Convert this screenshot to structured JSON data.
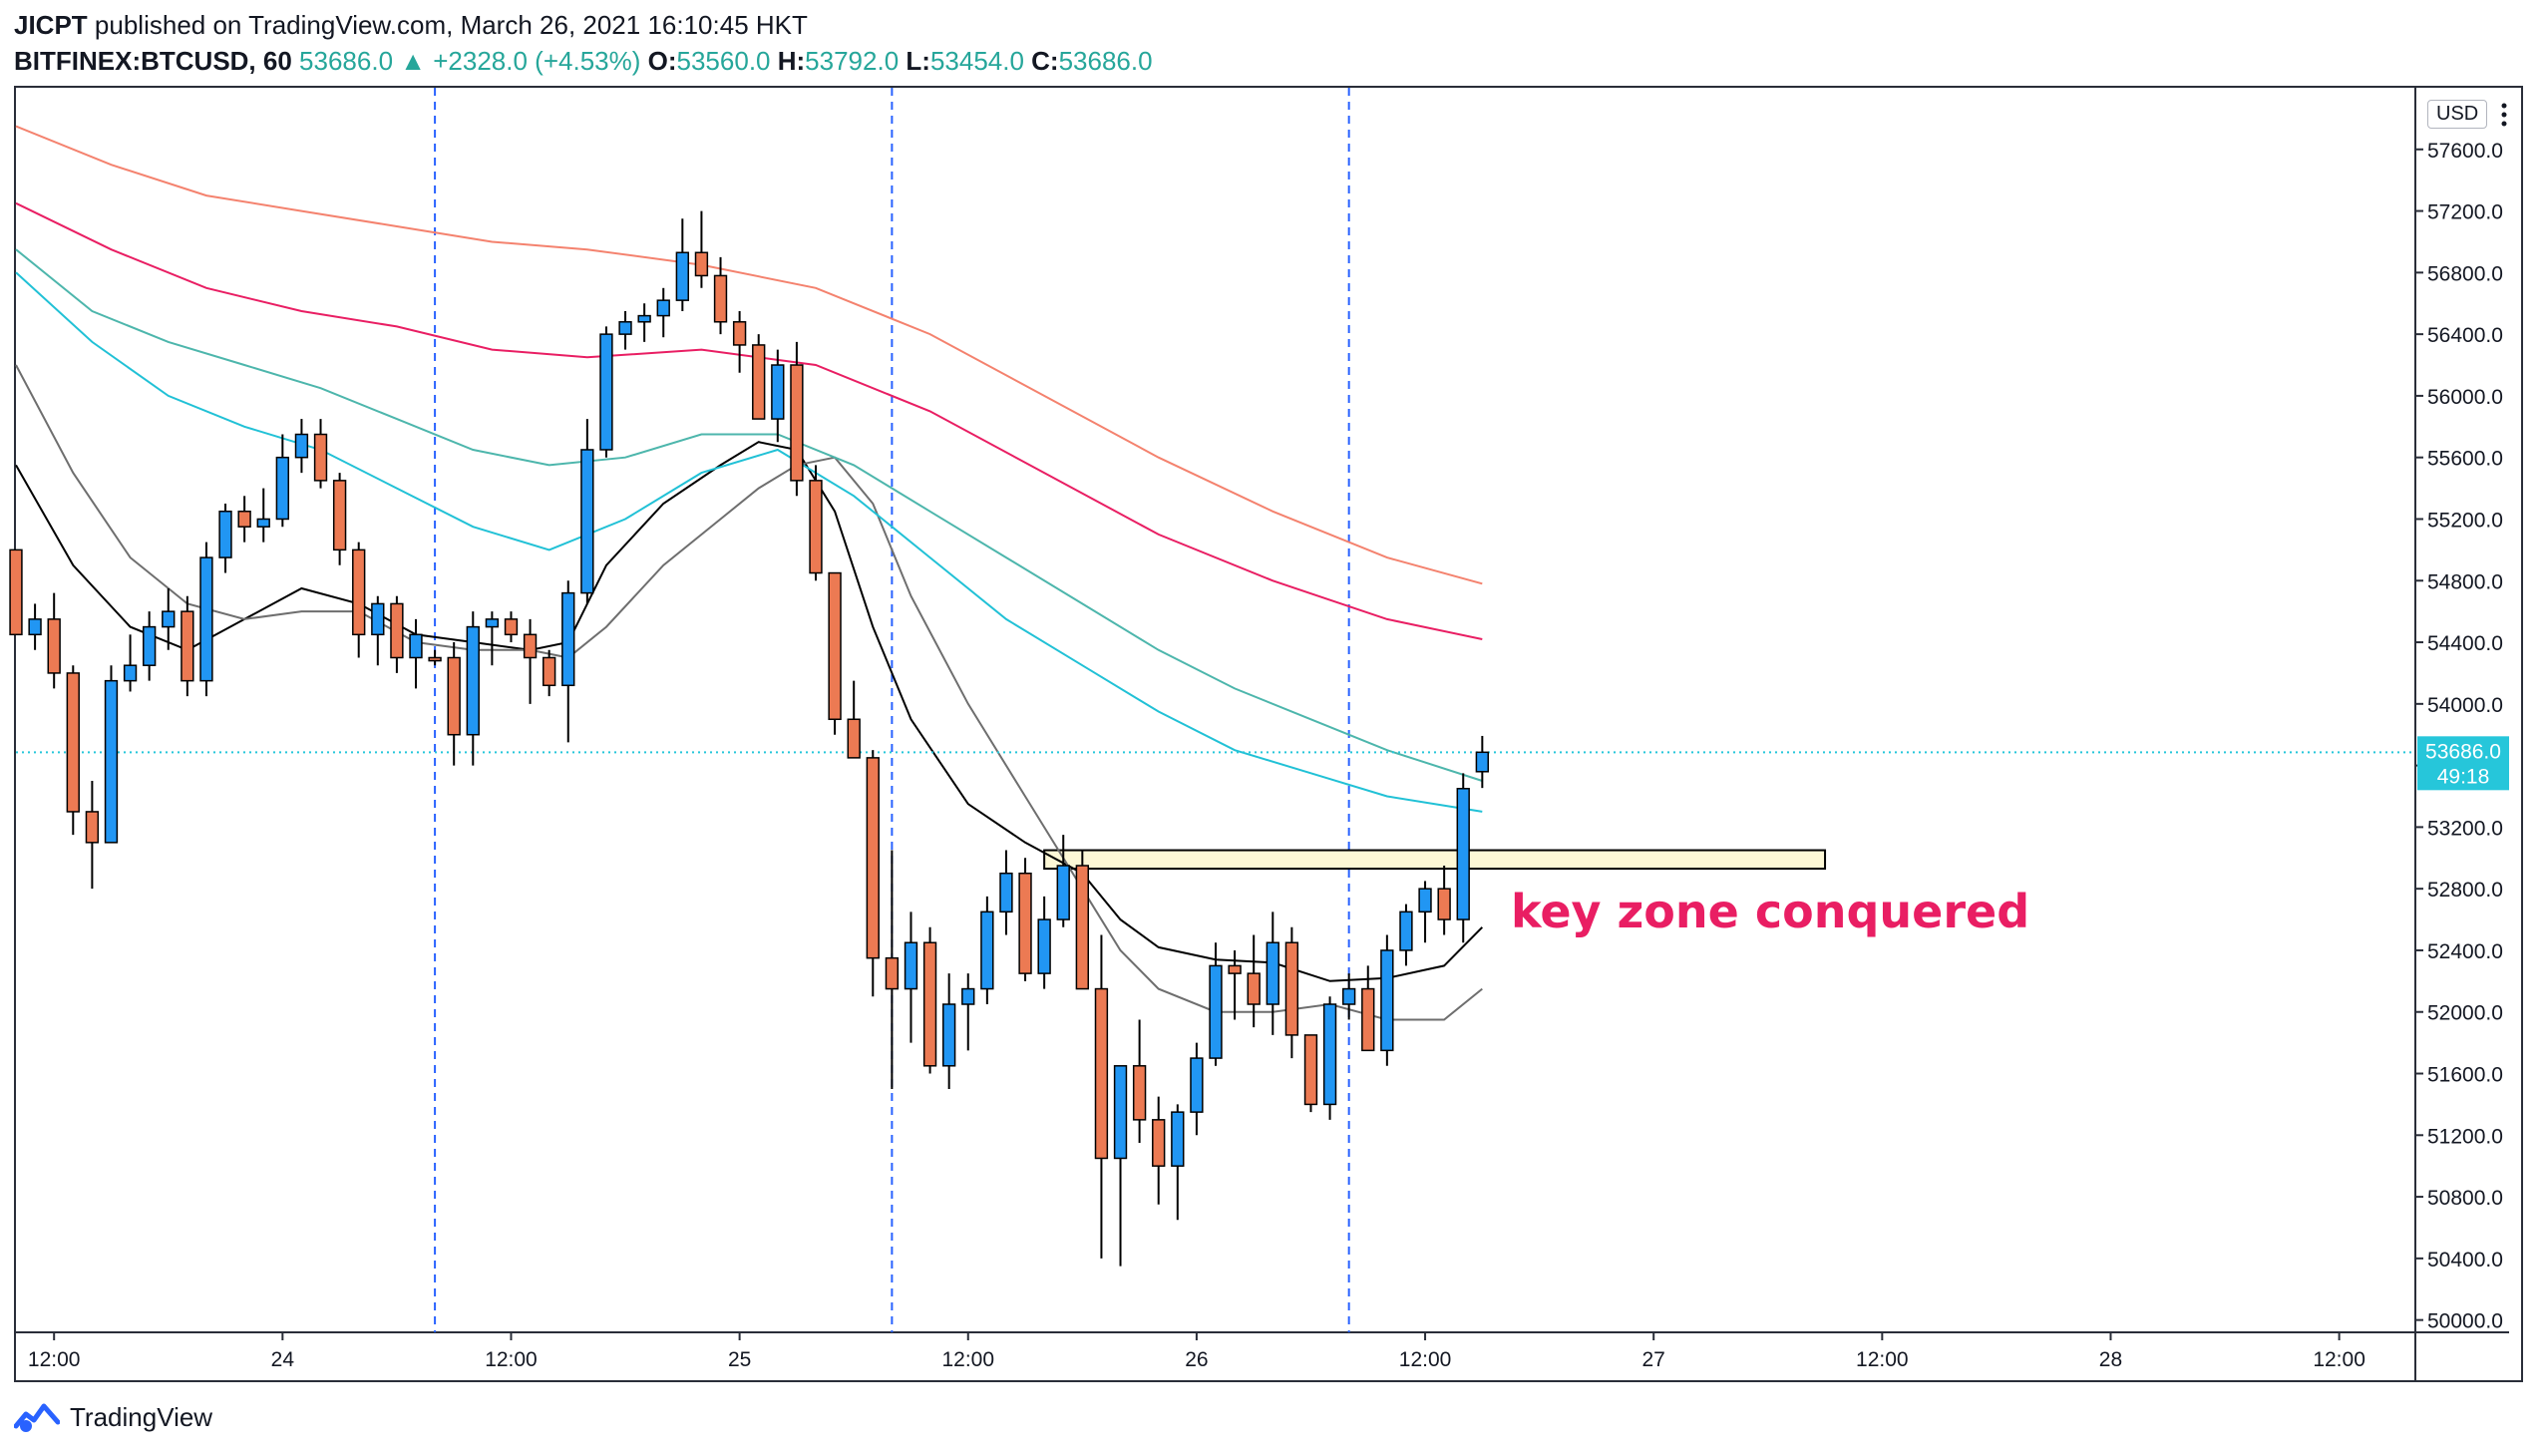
{
  "header": {
    "publisher": "JICPT",
    "published_text": "published on TradingView.com, March 26, 2021 16:10:45 HKT",
    "symbol": "BITFINEX:BTCUSD, 60",
    "last": "53686.0",
    "change": "+2328.0 (+4.53%)",
    "open_label": "O:",
    "open": "53560.0",
    "high_label": "H:",
    "high": "53792.0",
    "low_label": "L:",
    "low": "53454.0",
    "close_label": "C:",
    "close": "53686.0"
  },
  "price_axis": {
    "currency": "USD",
    "last_price_label": "53686.0",
    "countdown": "49:18"
  },
  "footer": {
    "brand": "TradingView"
  },
  "colors": {
    "up": "#2196f3",
    "down": "#ec7a53",
    "wick": "#000000",
    "ema_black": "#000000",
    "ema_gray": "#6e6e6e",
    "ema_cyan": "#21c1d6",
    "ema_teal": "#4db6ac",
    "ema_crimson": "#e91e63",
    "ema_salmon": "#f4826e",
    "annotation": "#e91e63",
    "key_zone_fill": "#fdf8d6",
    "price_line": "#26c6da",
    "session_line": "#2962ff"
  },
  "chart_data": {
    "type": "candlestick",
    "symbol": "BITFINEX:BTCUSD",
    "interval": "60",
    "ylim": [
      50000,
      57800
    ],
    "y_ticks": [
      57600,
      57200,
      56800,
      56400,
      56000,
      55600,
      55200,
      54800,
      54400,
      54000,
      53600,
      53200,
      52800,
      52400,
      52000,
      51600,
      51200,
      50800,
      50400,
      50000
    ],
    "y_tick_labels": [
      "57600.0",
      "57200.0",
      "56800.0",
      "56400.0",
      "56000.0",
      "55600.0",
      "55200.0",
      "54800.0",
      "54400.0",
      "54000.0",
      "53600.0",
      "53200.0",
      "52800.0",
      "52400.0",
      "52000.0",
      "51600.0",
      "51200.0",
      "50800.0",
      "50400.0",
      "50000.0"
    ],
    "x_ticks": [
      {
        "label": "12:00",
        "t": "2021-03-23T12:00"
      },
      {
        "label": "24",
        "t": "2021-03-24T00:00"
      },
      {
        "label": "12:00",
        "t": "2021-03-24T12:00"
      },
      {
        "label": "25",
        "t": "2021-03-25T00:00"
      },
      {
        "label": "12:00",
        "t": "2021-03-25T12:00"
      },
      {
        "label": "26",
        "t": "2021-03-26T00:00"
      },
      {
        "label": "12:00",
        "t": "2021-03-26T12:00"
      },
      {
        "label": "27",
        "t": "2021-03-27T00:00"
      },
      {
        "label": "12:00",
        "t": "2021-03-27T12:00"
      },
      {
        "label": "28",
        "t": "2021-03-28T00:00"
      },
      {
        "label": "12:00",
        "t": "2021-03-28T12:00"
      }
    ],
    "xlim": [
      "2021-03-23T10:00",
      "2021-03-28T16:00"
    ],
    "session_lines": [
      "2021-03-24T08:00",
      "2021-03-25T08:00",
      "2021-03-26T08:00"
    ],
    "first_bar_time": "2021-03-23T10:00",
    "bar_interval_hours": 1,
    "candles": [
      [
        55000,
        55000,
        54450,
        54450
      ],
      [
        54450,
        54650,
        54350,
        54550
      ],
      [
        54550,
        54720,
        54100,
        54200
      ],
      [
        54200,
        54250,
        53150,
        53300
      ],
      [
        53300,
        53500,
        52800,
        53100
      ],
      [
        53100,
        54250,
        53100,
        54150
      ],
      [
        54150,
        54450,
        54080,
        54250
      ],
      [
        54250,
        54600,
        54150,
        54500
      ],
      [
        54500,
        54750,
        54350,
        54600
      ],
      [
        54600,
        54700,
        54050,
        54150
      ],
      [
        54150,
        55050,
        54050,
        54950
      ],
      [
        54950,
        55300,
        54850,
        55250
      ],
      [
        55250,
        55350,
        55050,
        55150
      ],
      [
        55150,
        55400,
        55050,
        55200
      ],
      [
        55200,
        55750,
        55150,
        55600
      ],
      [
        55600,
        55850,
        55500,
        55750
      ],
      [
        55750,
        55850,
        55400,
        55450
      ],
      [
        55450,
        55500,
        54900,
        55000
      ],
      [
        55000,
        55050,
        54300,
        54450
      ],
      [
        54450,
        54700,
        54250,
        54650
      ],
      [
        54650,
        54700,
        54200,
        54300
      ],
      [
        54300,
        54550,
        54100,
        54450
      ],
      [
        54300,
        54350,
        54250,
        54280
      ],
      [
        54300,
        54400,
        53600,
        53800
      ],
      [
        53800,
        54600,
        53600,
        54500
      ],
      [
        54500,
        54600,
        54250,
        54550
      ],
      [
        54550,
        54600,
        54400,
        54450
      ],
      [
        54450,
        54550,
        54000,
        54300
      ],
      [
        54300,
        54350,
        54050,
        54120
      ],
      [
        54120,
        54800,
        53750,
        54720
      ],
      [
        54720,
        55850,
        54650,
        55650
      ],
      [
        55650,
        56450,
        55600,
        56400
      ],
      [
        56400,
        56550,
        56300,
        56480
      ],
      [
        56480,
        56600,
        56350,
        56520
      ],
      [
        56520,
        56700,
        56380,
        56620
      ],
      [
        56620,
        57150,
        56550,
        56930
      ],
      [
        56930,
        57200,
        56700,
        56780
      ],
      [
        56780,
        56900,
        56400,
        56480
      ],
      [
        56480,
        56550,
        56150,
        56330
      ],
      [
        56330,
        56400,
        55850,
        55850
      ],
      [
        55850,
        56300,
        55700,
        56200
      ],
      [
        56200,
        56350,
        55350,
        55450
      ],
      [
        55450,
        55550,
        54800,
        54850
      ],
      [
        54850,
        54850,
        53800,
        53900
      ],
      [
        53900,
        54150,
        53650,
        53650
      ],
      [
        53650,
        53700,
        52100,
        52350
      ],
      [
        52350,
        53050,
        51500,
        52150
      ],
      [
        52150,
        52650,
        51800,
        52450
      ],
      [
        52450,
        52550,
        51600,
        51650
      ],
      [
        51650,
        52250,
        51500,
        52050
      ],
      [
        52050,
        52250,
        51750,
        52150
      ],
      [
        52150,
        52750,
        52050,
        52650
      ],
      [
        52650,
        53050,
        52500,
        52900
      ],
      [
        52900,
        53000,
        52200,
        52250
      ],
      [
        52250,
        52750,
        52150,
        52600
      ],
      [
        52600,
        53150,
        52550,
        52950
      ],
      [
        52950,
        53050,
        52150,
        52150
      ],
      [
        52150,
        52500,
        50400,
        51050
      ],
      [
        51050,
        51650,
        50350,
        51650
      ],
      [
        51650,
        51950,
        51150,
        51300
      ],
      [
        51300,
        51450,
        50750,
        51000
      ],
      [
        51000,
        51400,
        50650,
        51350
      ],
      [
        51350,
        51800,
        51200,
        51700
      ],
      [
        51700,
        52450,
        51650,
        52300
      ],
      [
        52300,
        52400,
        51950,
        52250
      ],
      [
        52250,
        52500,
        51900,
        52050
      ],
      [
        52050,
        52650,
        51850,
        52450
      ],
      [
        52450,
        52550,
        51700,
        51850
      ],
      [
        51850,
        51850,
        51350,
        51400
      ],
      [
        51400,
        52100,
        51300,
        52050
      ],
      [
        52050,
        52250,
        51950,
        52150
      ],
      [
        52150,
        52300,
        51800,
        51750
      ],
      [
        51750,
        52500,
        51650,
        52400
      ],
      [
        52400,
        52700,
        52300,
        52650
      ],
      [
        52650,
        52850,
        52450,
        52800
      ],
      [
        52800,
        52950,
        52500,
        52600
      ],
      [
        52600,
        53550,
        52450,
        53450
      ],
      [
        53560,
        53792,
        53454,
        53686
      ]
    ],
    "series": [
      {
        "name": "",
        "color": "#000000",
        "values": [
          [
            0,
            55550
          ],
          [
            3,
            54900
          ],
          [
            6,
            54500
          ],
          [
            9,
            54350
          ],
          [
            12,
            54550
          ],
          [
            15,
            54750
          ],
          [
            18,
            54650
          ],
          [
            21,
            54450
          ],
          [
            24,
            54400
          ],
          [
            27,
            54350
          ],
          [
            29,
            54400
          ],
          [
            31,
            54900
          ],
          [
            34,
            55300
          ],
          [
            37,
            55550
          ],
          [
            39,
            55700
          ],
          [
            41,
            55650
          ],
          [
            43,
            55250
          ],
          [
            45,
            54500
          ],
          [
            47,
            53900
          ],
          [
            50,
            53350
          ],
          [
            53,
            53100
          ],
          [
            56,
            52900
          ],
          [
            58,
            52600
          ],
          [
            60,
            52420
          ],
          [
            63,
            52340
          ],
          [
            66,
            52320
          ],
          [
            69,
            52200
          ],
          [
            72,
            52220
          ],
          [
            75,
            52300
          ],
          [
            77,
            52550
          ]
        ]
      },
      {
        "name": "",
        "color": "#6e6e6e",
        "values": [
          [
            0,
            56200
          ],
          [
            3,
            55500
          ],
          [
            6,
            54950
          ],
          [
            9,
            54650
          ],
          [
            12,
            54550
          ],
          [
            15,
            54600
          ],
          [
            18,
            54600
          ],
          [
            21,
            54400
          ],
          [
            24,
            54350
          ],
          [
            27,
            54350
          ],
          [
            29,
            54300
          ],
          [
            31,
            54500
          ],
          [
            34,
            54900
          ],
          [
            37,
            55200
          ],
          [
            39,
            55400
          ],
          [
            41,
            55550
          ],
          [
            43,
            55600
          ],
          [
            45,
            55300
          ],
          [
            47,
            54700
          ],
          [
            50,
            54000
          ],
          [
            53,
            53400
          ],
          [
            56,
            52800
          ],
          [
            58,
            52400
          ],
          [
            60,
            52150
          ],
          [
            63,
            52000
          ],
          [
            66,
            52000
          ],
          [
            69,
            52050
          ],
          [
            72,
            51950
          ],
          [
            75,
            51950
          ],
          [
            77,
            52150
          ]
        ]
      },
      {
        "name": "",
        "color": "#21c1d6",
        "values": [
          [
            0,
            56800
          ],
          [
            4,
            56350
          ],
          [
            8,
            56000
          ],
          [
            12,
            55800
          ],
          [
            16,
            55650
          ],
          [
            20,
            55400
          ],
          [
            24,
            55150
          ],
          [
            28,
            55000
          ],
          [
            32,
            55200
          ],
          [
            36,
            55500
          ],
          [
            40,
            55650
          ],
          [
            44,
            55350
          ],
          [
            48,
            54950
          ],
          [
            52,
            54550
          ],
          [
            56,
            54250
          ],
          [
            60,
            53950
          ],
          [
            64,
            53700
          ],
          [
            68,
            53550
          ],
          [
            72,
            53400
          ],
          [
            77,
            53300
          ]
        ]
      },
      {
        "name": "",
        "color": "#4db6ac",
        "values": [
          [
            0,
            56950
          ],
          [
            4,
            56550
          ],
          [
            8,
            56350
          ],
          [
            12,
            56200
          ],
          [
            16,
            56050
          ],
          [
            20,
            55850
          ],
          [
            24,
            55650
          ],
          [
            28,
            55550
          ],
          [
            32,
            55600
          ],
          [
            36,
            55750
          ],
          [
            40,
            55750
          ],
          [
            44,
            55550
          ],
          [
            48,
            55250
          ],
          [
            52,
            54950
          ],
          [
            56,
            54650
          ],
          [
            60,
            54350
          ],
          [
            64,
            54100
          ],
          [
            68,
            53900
          ],
          [
            72,
            53700
          ],
          [
            77,
            53500
          ]
        ]
      },
      {
        "name": "",
        "color": "#e91e63",
        "values": [
          [
            0,
            57250
          ],
          [
            5,
            56950
          ],
          [
            10,
            56700
          ],
          [
            15,
            56550
          ],
          [
            20,
            56450
          ],
          [
            25,
            56300
          ],
          [
            30,
            56250
          ],
          [
            36,
            56300
          ],
          [
            42,
            56200
          ],
          [
            48,
            55900
          ],
          [
            54,
            55500
          ],
          [
            60,
            55100
          ],
          [
            66,
            54800
          ],
          [
            72,
            54550
          ],
          [
            77,
            54420
          ]
        ]
      },
      {
        "name": "",
        "color": "#f4826e",
        "values": [
          [
            0,
            57750
          ],
          [
            5,
            57500
          ],
          [
            10,
            57300
          ],
          [
            15,
            57200
          ],
          [
            20,
            57100
          ],
          [
            25,
            57000
          ],
          [
            30,
            56950
          ],
          [
            36,
            56850
          ],
          [
            42,
            56700
          ],
          [
            48,
            56400
          ],
          [
            54,
            56000
          ],
          [
            60,
            55600
          ],
          [
            66,
            55250
          ],
          [
            72,
            54950
          ],
          [
            77,
            54780
          ]
        ]
      }
    ],
    "key_zone": {
      "x_start_bar": 54,
      "x_end_bar": 95,
      "y_low": 52930,
      "y_high": 53050
    },
    "annotation": {
      "text": "key zone conquered",
      "price": 52550,
      "bar": 78.5
    },
    "last_price": 53686
  }
}
